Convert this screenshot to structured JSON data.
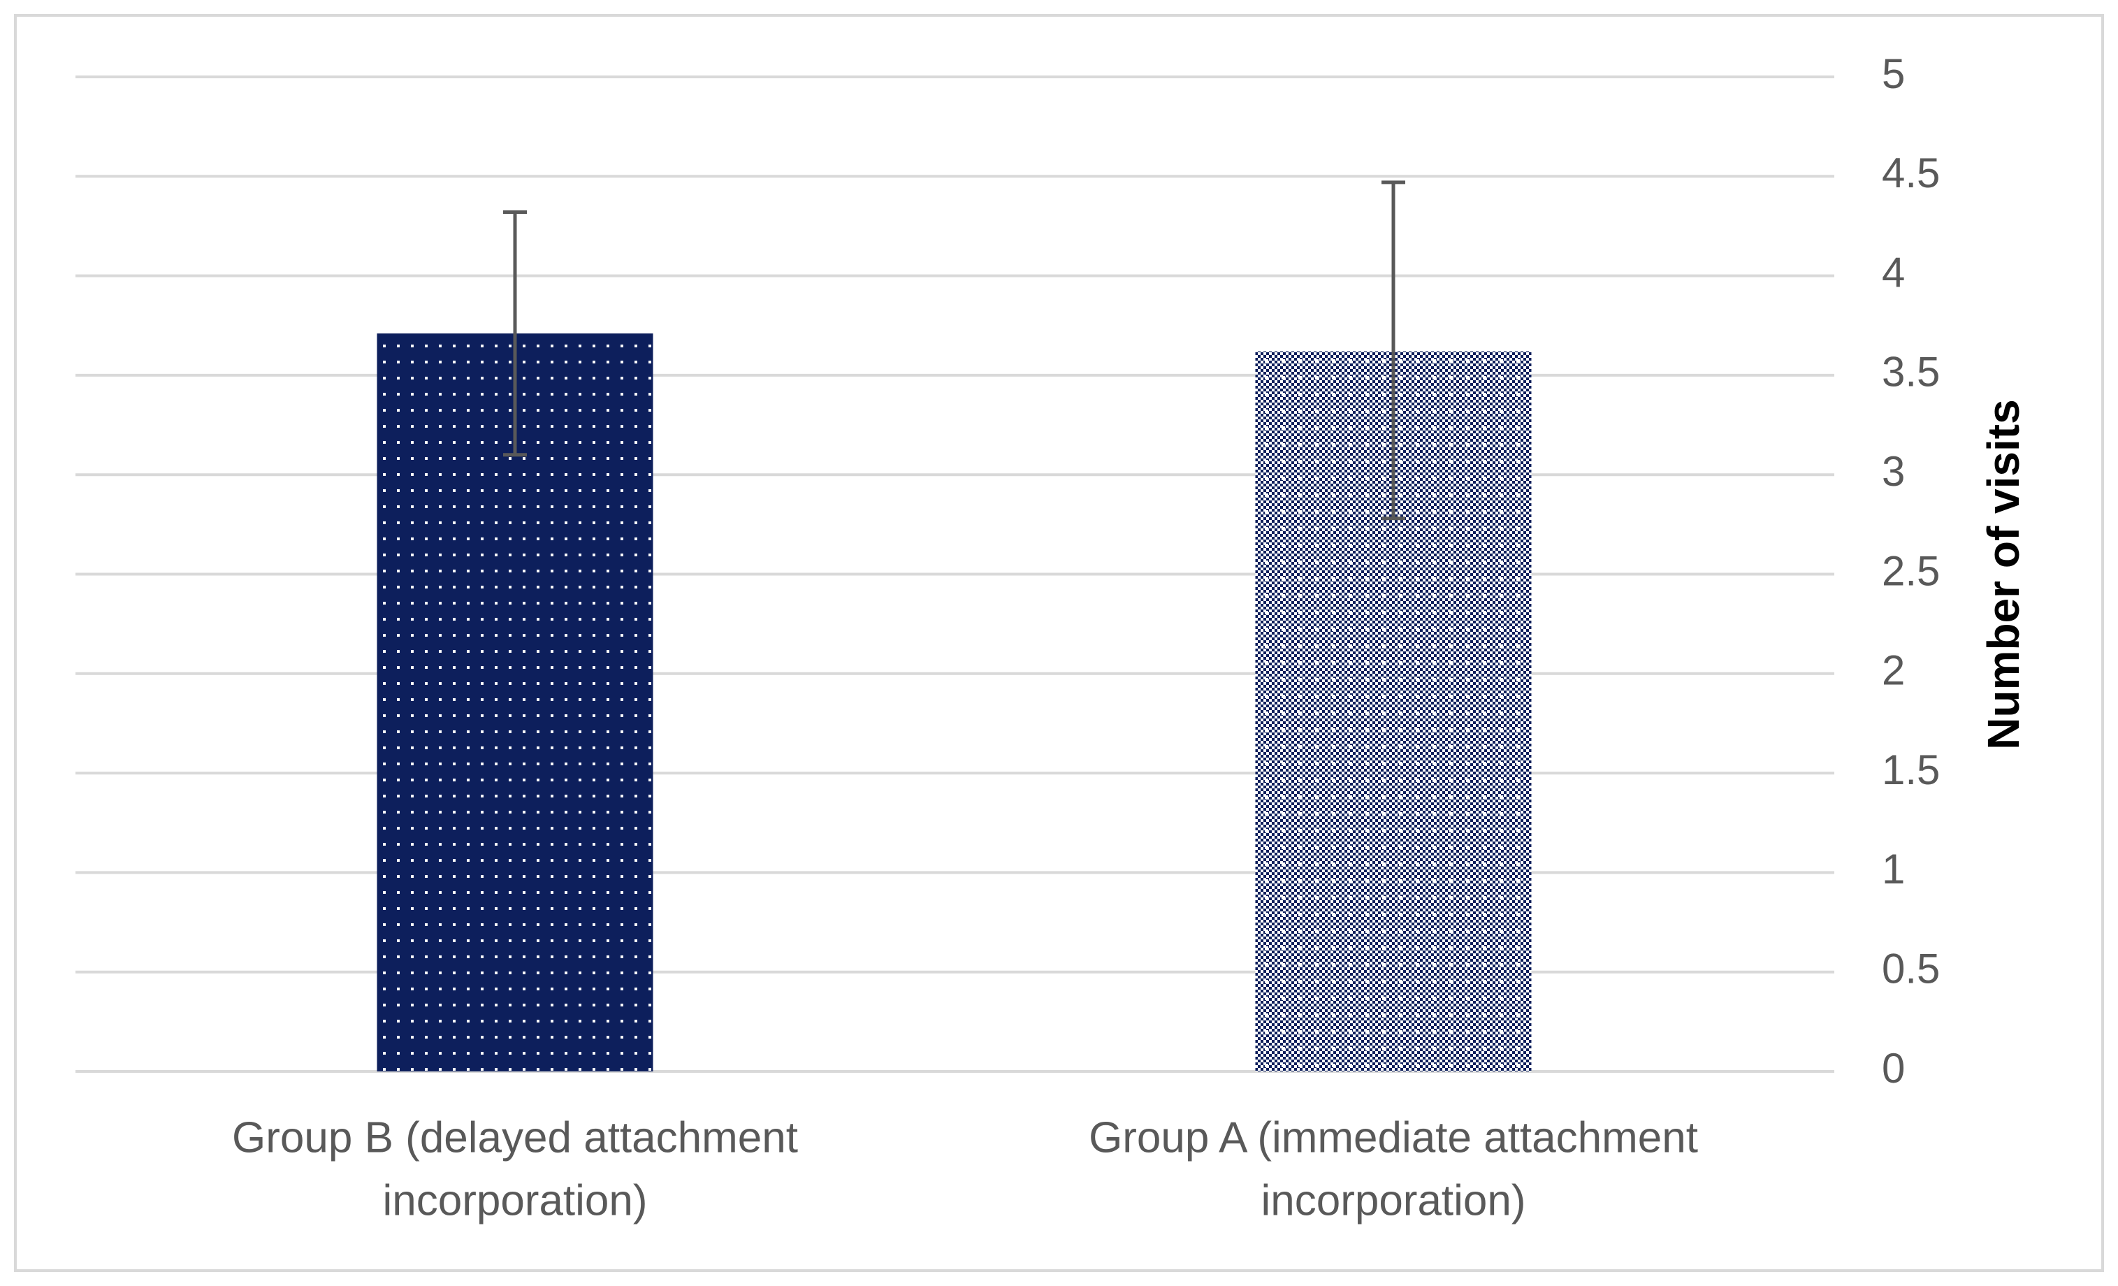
{
  "chart_data": {
    "type": "bar",
    "categories": [
      [
        "Group B (delayed attachment",
        "incorporation)"
      ],
      [
        "Group A (immediate attachment",
        "incorporation)"
      ]
    ],
    "values": [
      3.71,
      3.62
    ],
    "error_bars": [
      {
        "upper": 4.32,
        "lower": 3.1
      },
      {
        "upper": 4.47,
        "lower": 2.78
      }
    ],
    "ylabel": "Number of visits",
    "ylim": [
      0,
      5
    ],
    "yticks": [
      "0",
      "0.5",
      "1",
      "1.5",
      "2",
      "2.5",
      "3",
      "3.5",
      "4",
      "4.5",
      "5"
    ],
    "y_axis_position": "right",
    "grid": true,
    "legend": "none",
    "colors": {
      "bar_fill": "#0d1f5c",
      "dots": "#ffffff",
      "grid": "#d9d9d9",
      "tick_text": "#595959",
      "axis_title": "#000000",
      "error_bar": "#595959",
      "frame": "#d9d9d9"
    },
    "patterns": [
      "dotted-grid",
      "fine-checker-dotted"
    ]
  }
}
